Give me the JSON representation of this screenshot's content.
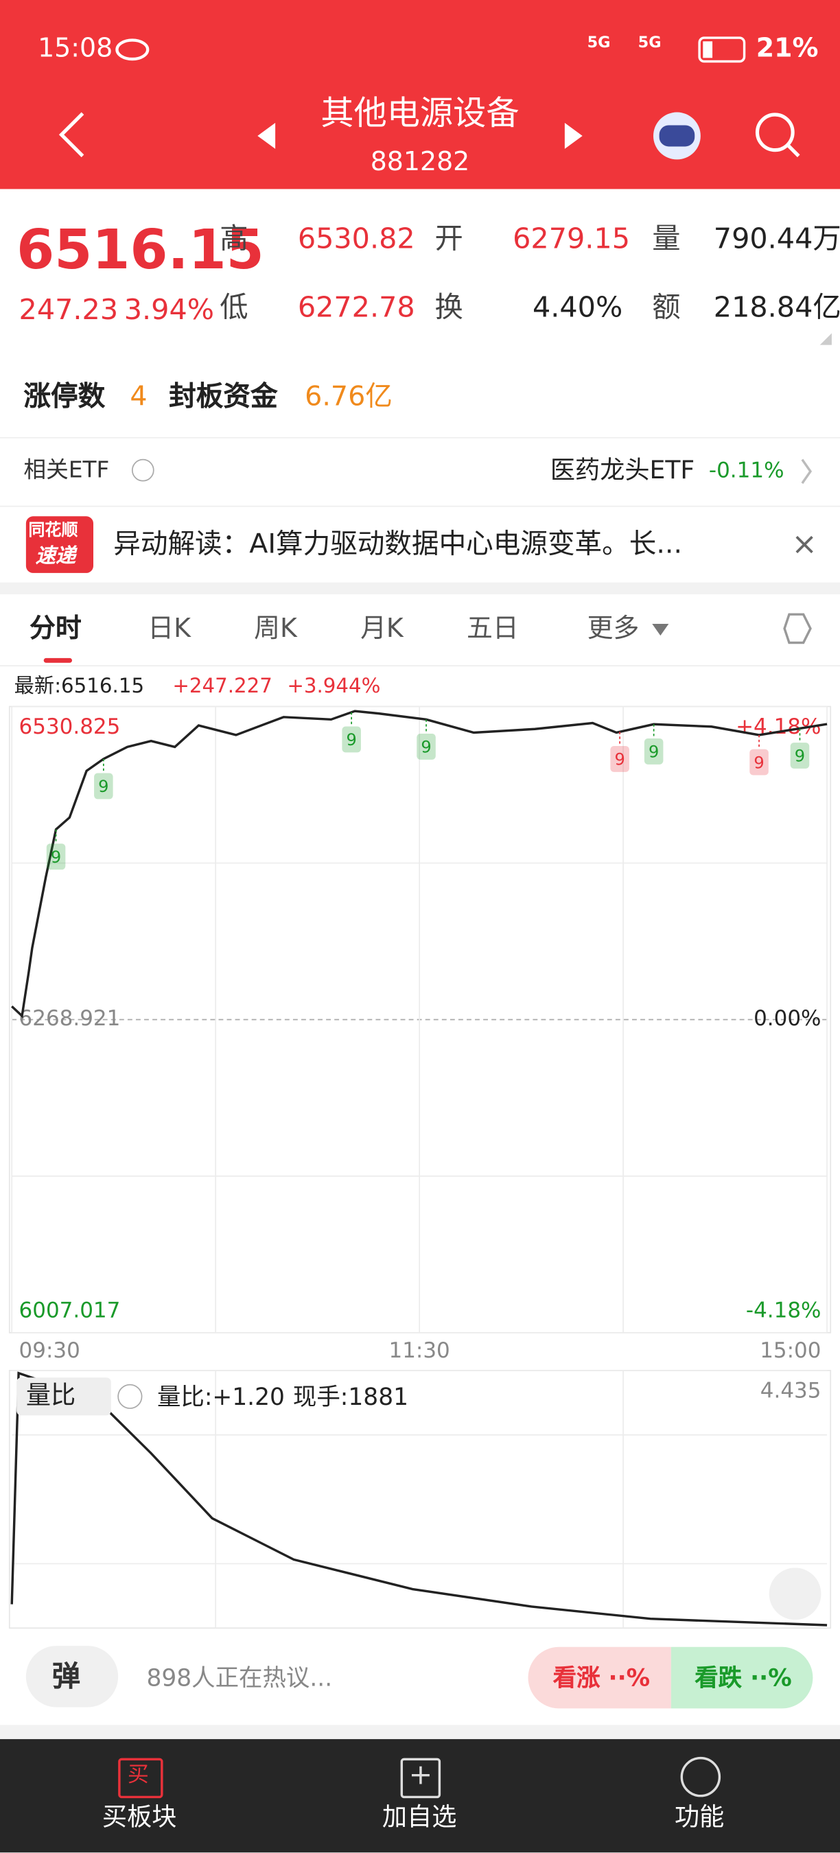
{
  "status_bar": {
    "time": "15:08",
    "signal_1": "5G",
    "signal_2": "5G",
    "battery": "21%"
  },
  "header": {
    "title": "其他电源设备",
    "code": "881282"
  },
  "quote": {
    "price": "6516.15",
    "change": "247.23",
    "change_pct": "3.94%",
    "high_label": "高",
    "high": "6530.82",
    "open_label": "开",
    "open": "6279.15",
    "volume_label": "量",
    "volume": "790.44万",
    "low_label": "低",
    "low": "6272.78",
    "turnover_label": "换",
    "turnover": "4.40%",
    "amount_label": "额",
    "amount": "218.84亿"
  },
  "limit_up": {
    "count_label": "涨停数",
    "count": "4",
    "fund_label": "封板资金",
    "fund": "6.76亿"
  },
  "etf": {
    "label": "相关ETF",
    "name": "医药龙头ETF",
    "change": "-0.11%"
  },
  "news": {
    "badge_top": "同花顺",
    "badge_bottom": "速递",
    "text": "异动解读：AI算力驱动数据中心电源变革。长..."
  },
  "tabs": [
    "分时",
    "日K",
    "周K",
    "月K",
    "五日",
    "更多"
  ],
  "latest": {
    "price": "最新:6516.15",
    "change": "+247.227",
    "change_pct": "+3.944%"
  },
  "chart_data": [
    {
      "type": "line",
      "color": "#222222",
      "x": [
        0,
        3,
        5,
        6,
        10,
        13,
        17,
        22,
        27,
        34,
        41,
        48,
        55,
        66,
        80,
        94,
        101,
        108,
        122,
        136,
        154,
        171,
        178,
        189,
        206,
        220,
        240
      ],
      "values": [
        6280,
        6272,
        6309,
        6329,
        6388,
        6428,
        6438,
        6477,
        6487,
        6497,
        6502,
        6497,
        6515,
        6507,
        6522,
        6520,
        6527,
        6525,
        6520,
        6509,
        6512,
        6517,
        6509,
        6516,
        6514,
        6507,
        6516.15
      ],
      "xlim": [
        0,
        240
      ],
      "xticks": [
        {
          "value": 0,
          "label": "09:30"
        },
        {
          "value": 120,
          "label": "11:30"
        },
        {
          "value": 240,
          "label": "15:00"
        }
      ],
      "ylim": [
        6007.017,
        6530.825
      ],
      "yticks": [
        6007.017,
        6268.921,
        6530.825
      ],
      "y2lim": [
        -4.18,
        4.18
      ],
      "y2ticks": [
        {
          "value": -4.18,
          "label": "-4.18%"
        },
        {
          "value": 0,
          "label": "0.00%"
        },
        {
          "value": 4.18,
          "label": "+4.18%"
        }
      ],
      "annotations": [
        {
          "x": 13,
          "label": "9",
          "color": "#1a9a2a"
        },
        {
          "x": 27,
          "label": "9",
          "color": "#1a9a2a"
        },
        {
          "x": 100,
          "label": "9",
          "color": "#1a9a2a"
        },
        {
          "x": 122,
          "label": "9",
          "color": "#1a9a2a"
        },
        {
          "x": 179,
          "label": "9",
          "color": "#e8313a"
        },
        {
          "x": 189,
          "label": "9",
          "color": "#1a9a2a"
        },
        {
          "x": 220,
          "label": "9",
          "color": "#e8313a"
        },
        {
          "x": 232,
          "label": "9",
          "color": "#1a9a2a"
        }
      ]
    },
    {
      "type": "line",
      "color": "#222222",
      "x": [
        0,
        2,
        10,
        17,
        27,
        41,
        59,
        83,
        118,
        153,
        188,
        240
      ],
      "values": [
        0.41,
        4.39,
        4.23,
        4.2,
        3.82,
        3.01,
        1.89,
        1.18,
        0.67,
        0.37,
        0.16,
        0.05
      ],
      "xlim": [
        0,
        240
      ],
      "ylim": [
        0,
        4.435
      ],
      "yticks": [
        4.435
      ]
    }
  ],
  "volume_panel": {
    "selector": "量比",
    "ratio": "量比:+1.20",
    "current": "现手:1881"
  },
  "discussion": {
    "danmaku": "弹",
    "text": "898人正在热议...",
    "bull": "看涨 ··%",
    "bear": "看跌 ··%"
  },
  "bottom_nav": [
    {
      "icon": "买",
      "label": "买板块"
    },
    {
      "label": "加自选"
    },
    {
      "label": "功能"
    }
  ]
}
